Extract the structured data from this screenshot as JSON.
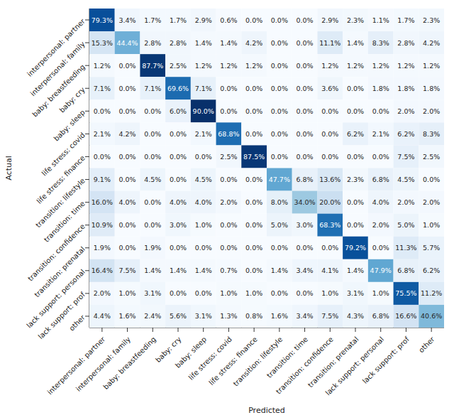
{
  "chart_data": {
    "type": "heatmap",
    "x_label": "Predicted",
    "y_label": "Actual",
    "x_categories": [
      "interpersonal: partner",
      "interpersonal: family",
      "baby: breastfeeding",
      "baby: cry",
      "baby: sleep",
      "life stress: covid",
      "life stress: finance",
      "transition: lifestyle",
      "transition: time",
      "transition: confidence",
      "transition: prenatal",
      "lack support: personal",
      "lack support: prof",
      "other"
    ],
    "y_categories": [
      "interpersonal: partner",
      "interpersonal: family",
      "baby: breastfeeding",
      "baby: cry",
      "baby: sleep",
      "life stress: covid",
      "life stress: finance",
      "transition: lifestyle",
      "transition: time",
      "transition: confidence",
      "transition: prenatal",
      "lack support: personal",
      "lack support: prof",
      "other"
    ],
    "values": [
      [
        79.3,
        3.4,
        1.7,
        1.7,
        2.9,
        0.6,
        0.0,
        0.0,
        0.0,
        2.9,
        2.3,
        1.1,
        1.7,
        2.3
      ],
      [
        15.3,
        44.4,
        2.8,
        2.8,
        1.4,
        1.4,
        4.2,
        0.0,
        0.0,
        11.1,
        1.4,
        8.3,
        2.8,
        4.2
      ],
      [
        1.2,
        0.0,
        87.7,
        2.5,
        1.2,
        1.2,
        1.2,
        0.0,
        0.0,
        1.2,
        1.2,
        1.2,
        1.2,
        1.2
      ],
      [
        7.1,
        0.0,
        7.1,
        69.6,
        7.1,
        0.0,
        0.0,
        0.0,
        0.0,
        3.6,
        0.0,
        1.8,
        1.8,
        1.8
      ],
      [
        0.0,
        0.0,
        0.0,
        6.0,
        90.0,
        0.0,
        0.0,
        0.0,
        0.0,
        0.0,
        0.0,
        0.0,
        2.0,
        2.0
      ],
      [
        2.1,
        4.2,
        0.0,
        0.0,
        2.1,
        68.8,
        0.0,
        0.0,
        0.0,
        0.0,
        6.2,
        2.1,
        6.2,
        8.3
      ],
      [
        0.0,
        0.0,
        0.0,
        0.0,
        0.0,
        2.5,
        87.5,
        0.0,
        0.0,
        0.0,
        0.0,
        0.0,
        7.5,
        2.5
      ],
      [
        9.1,
        0.0,
        4.5,
        0.0,
        4.5,
        0.0,
        0.0,
        47.7,
        6.8,
        13.6,
        2.3,
        6.8,
        4.5,
        0.0
      ],
      [
        16.0,
        4.0,
        0.0,
        4.0,
        4.0,
        2.0,
        0.0,
        8.0,
        34.0,
        20.0,
        0.0,
        4.0,
        2.0,
        2.0
      ],
      [
        10.9,
        0.0,
        0.0,
        3.0,
        1.0,
        0.0,
        0.0,
        5.0,
        3.0,
        68.3,
        0.0,
        2.0,
        5.0,
        1.0
      ],
      [
        1.9,
        0.0,
        1.9,
        0.0,
        0.0,
        0.0,
        0.0,
        0.0,
        0.0,
        0.0,
        79.2,
        0.0,
        11.3,
        5.7
      ],
      [
        16.4,
        7.5,
        1.4,
        1.4,
        1.4,
        0.7,
        0.0,
        1.4,
        3.4,
        4.1,
        1.4,
        47.9,
        6.8,
        6.2
      ],
      [
        2.0,
        1.0,
        3.1,
        0.0,
        0.0,
        1.0,
        1.0,
        0.0,
        0.0,
        1.0,
        3.1,
        1.0,
        75.5,
        11.2
      ],
      [
        4.4,
        1.6,
        2.4,
        5.6,
        3.1,
        1.3,
        0.8,
        1.6,
        3.4,
        7.5,
        4.3,
        6.8,
        16.6,
        40.6
      ]
    ],
    "value_labels": [
      [
        "79.3%",
        "3.4%",
        "1.7%",
        "1.7%",
        "2.9%",
        "0.6%",
        "0.0%",
        "0.0%",
        "0.0%",
        "2.9%",
        "2.3%",
        "1.1%",
        "1.7%",
        "2.3%"
      ],
      [
        "15.3%",
        "44.4%",
        "2.8%",
        "2.8%",
        "1.4%",
        "1.4%",
        "4.2%",
        "0.0%",
        "0.0%",
        "11.1%",
        "1.4%",
        "8.3%",
        "2.8%",
        "4.2%"
      ],
      [
        "1.2%",
        "0.0%",
        "87.7%",
        "2.5%",
        "1.2%",
        "1.2%",
        "1.2%",
        "0.0%",
        "0.0%",
        "1.2%",
        "1.2%",
        "1.2%",
        "1.2%",
        "1.2%"
      ],
      [
        "7.1%",
        "0.0%",
        "7.1%",
        "69.6%",
        "7.1%",
        "0.0%",
        "0.0%",
        "0.0%",
        "0.0%",
        "3.6%",
        "0.0%",
        "1.8%",
        "1.8%",
        "1.8%"
      ],
      [
        "0.0%",
        "0.0%",
        "0.0%",
        "6.0%",
        "90.0%",
        "0.0%",
        "0.0%",
        "0.0%",
        "0.0%",
        "0.0%",
        "0.0%",
        "0.0%",
        "2.0%",
        "2.0%"
      ],
      [
        "2.1%",
        "4.2%",
        "0.0%",
        "0.0%",
        "2.1%",
        "68.8%",
        "0.0%",
        "0.0%",
        "0.0%",
        "0.0%",
        "6.2%",
        "2.1%",
        "6.2%",
        "8.3%"
      ],
      [
        "0.0%",
        "0.0%",
        "0.0%",
        "0.0%",
        "0.0%",
        "2.5%",
        "87.5%",
        "0.0%",
        "0.0%",
        "0.0%",
        "0.0%",
        "0.0%",
        "7.5%",
        "2.5%"
      ],
      [
        "9.1%",
        "0.0%",
        "4.5%",
        "0.0%",
        "4.5%",
        "0.0%",
        "0.0%",
        "47.7%",
        "6.8%",
        "13.6%",
        "2.3%",
        "6.8%",
        "4.5%",
        "0.0%"
      ],
      [
        "16.0%",
        "4.0%",
        "0.0%",
        "4.0%",
        "4.0%",
        "2.0%",
        "0.0%",
        "8.0%",
        "34.0%",
        "20.0%",
        "0.0%",
        "4.0%",
        "2.0%",
        "2.0%"
      ],
      [
        "10.9%",
        "0.0%",
        "0.0%",
        "3.0%",
        "1.0%",
        "0.0%",
        "0.0%",
        "5.0%",
        "3.0%",
        "68.3%",
        "0.0%",
        "2.0%",
        "5.0%",
        "1.0%"
      ],
      [
        "1.9%",
        "0.0%",
        "1.9%",
        "0.0%",
        "0.0%",
        "0.0%",
        "0.0%",
        "0.0%",
        "0.0%",
        "0.0%",
        "79.2%",
        "0.0%",
        "11.3%",
        "5.7%"
      ],
      [
        "16.4%",
        "7.5%",
        "1.4%",
        "1.4%",
        "1.4%",
        "0.7%",
        "0.0%",
        "1.4%",
        "3.4%",
        "4.1%",
        "1.4%",
        "47.9%",
        "6.8%",
        "6.2%"
      ],
      [
        "2.0%",
        "1.0%",
        "3.1%",
        "0.0%",
        "0.0%",
        "1.0%",
        "1.0%",
        "0.0%",
        "0.0%",
        "1.0%",
        "3.1%",
        "1.0%",
        "75.5%",
        "11.2%"
      ],
      [
        "4.4%",
        "1.6%",
        "2.4%",
        "5.6%",
        "3.1%",
        "1.3%",
        "0.8%",
        "1.6%",
        "3.4%",
        "7.5%",
        "4.3%",
        "6.8%",
        "16.6%",
        "40.6%"
      ]
    ],
    "data_labels": true
  }
}
